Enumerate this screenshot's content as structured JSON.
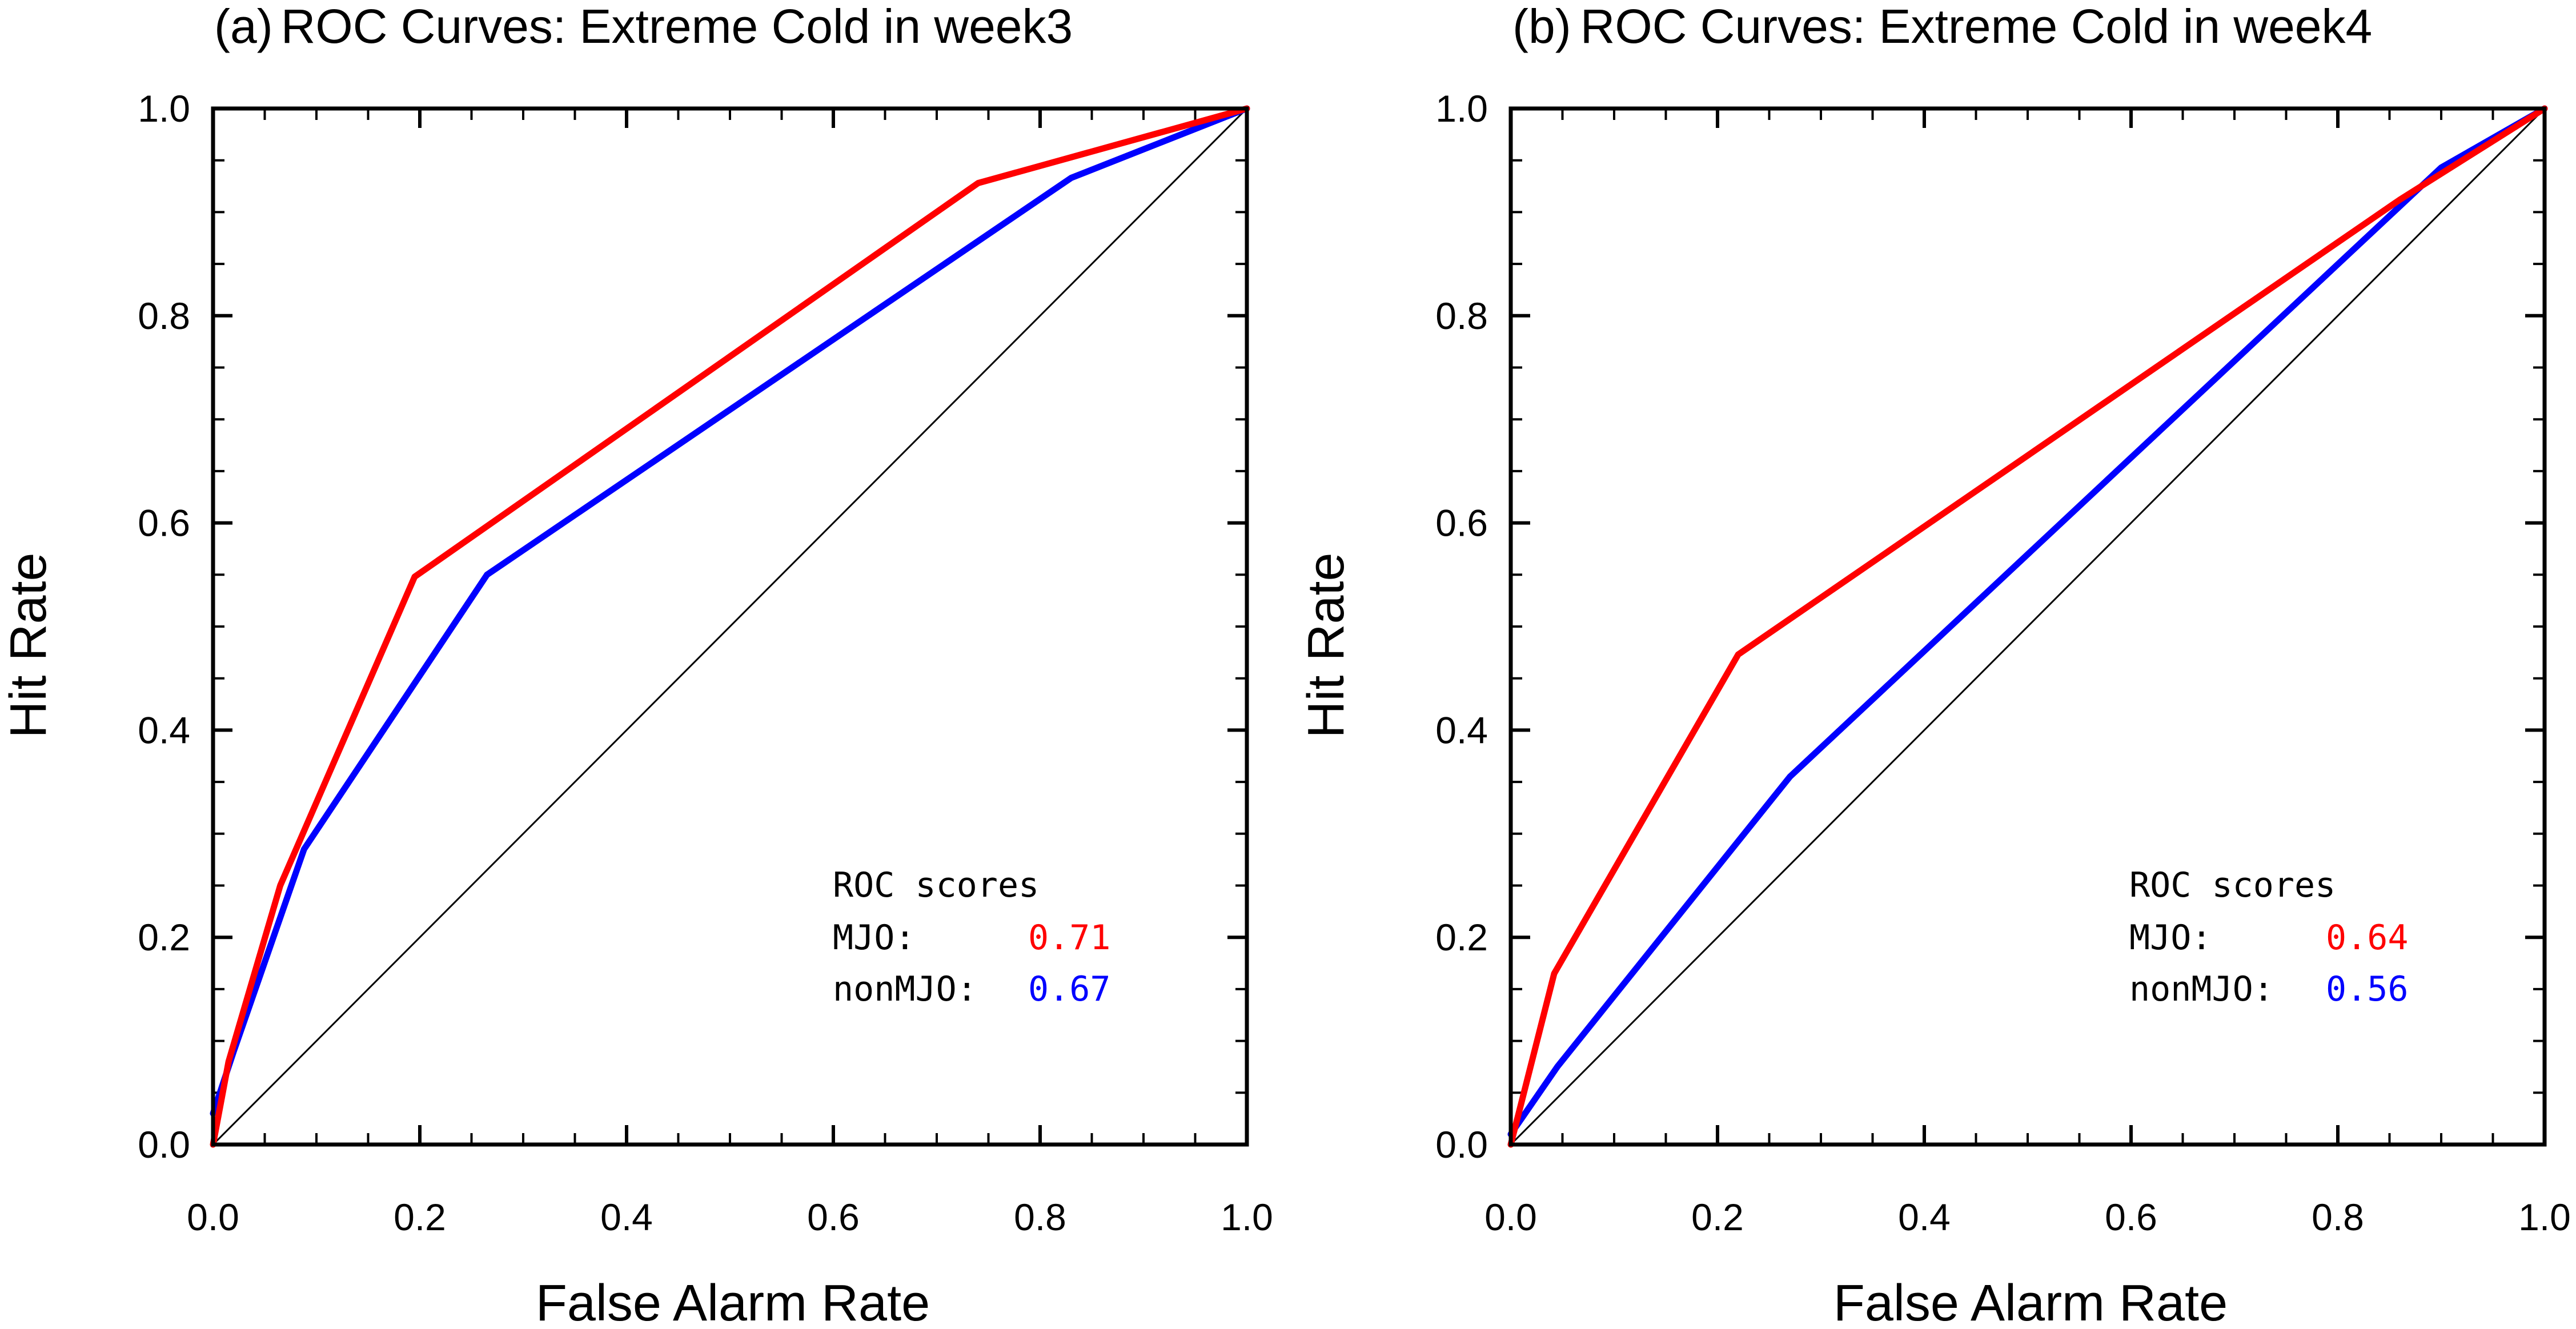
{
  "chart_data": [
    {
      "type": "line",
      "panel_label": "(a)",
      "title": "ROC Curves: Extreme Cold in week3",
      "xlabel": "False Alarm Rate",
      "ylabel": "Hit Rate",
      "xlim": [
        0,
        1
      ],
      "ylim": [
        0,
        1
      ],
      "xticks": [
        "0.0",
        "0.2",
        "0.4",
        "0.6",
        "0.8",
        "1.0"
      ],
      "yticks": [
        "0.0",
        "0.2",
        "0.4",
        "0.6",
        "0.8",
        "1.0"
      ],
      "reference_line": {
        "x": [
          0,
          1
        ],
        "y": [
          0,
          1
        ],
        "color": "#000000"
      },
      "series": [
        {
          "name": "MJO",
          "color": "#ff0000",
          "x": [
            0,
            0.015,
            0.065,
            0.195,
            0.74,
            1.0
          ],
          "y": [
            0,
            0.08,
            0.25,
            0.548,
            0.928,
            1.0
          ]
        },
        {
          "name": "nonMJO",
          "color": "#0000ff",
          "x": [
            0,
            0.02,
            0.088,
            0.265,
            0.83,
            1.0
          ],
          "y": [
            0.03,
            0.09,
            0.285,
            0.55,
            0.933,
            1.0
          ]
        }
      ],
      "legend": {
        "title": "ROC scores",
        "entries": [
          {
            "label": "MJO:",
            "score": "0.71",
            "color": "#ff0000"
          },
          {
            "label": "nonMJO:",
            "score": "0.67",
            "color": "#0000ff"
          }
        ]
      }
    },
    {
      "type": "line",
      "panel_label": "(b)",
      "title": "ROC Curves: Extreme Cold in week4",
      "xlabel": "False Alarm Rate",
      "ylabel": "Hit Rate",
      "xlim": [
        0,
        1
      ],
      "ylim": [
        0,
        1
      ],
      "xticks": [
        "0.0",
        "0.2",
        "0.4",
        "0.6",
        "0.8",
        "1.0"
      ],
      "yticks": [
        "0.0",
        "0.2",
        "0.4",
        "0.6",
        "0.8",
        "1.0"
      ],
      "reference_line": {
        "x": [
          0,
          1
        ],
        "y": [
          0,
          1
        ],
        "color": "#000000"
      },
      "series": [
        {
          "name": "MJO",
          "color": "#ff0000",
          "x": [
            0,
            0.042,
            0.22,
            0.86,
            1.0
          ],
          "y": [
            0,
            0.165,
            0.473,
            0.912,
            1.0
          ]
        },
        {
          "name": "nonMJO",
          "color": "#0000ff",
          "x": [
            0,
            0.045,
            0.27,
            0.9,
            1.0
          ],
          "y": [
            0.01,
            0.075,
            0.355,
            0.943,
            1.0
          ]
        }
      ],
      "legend": {
        "title": "ROC scores",
        "entries": [
          {
            "label": "MJO:",
            "score": "0.64",
            "color": "#ff0000"
          },
          {
            "label": "nonMJO:",
            "score": "0.56",
            "color": "#0000ff"
          }
        ]
      }
    }
  ]
}
